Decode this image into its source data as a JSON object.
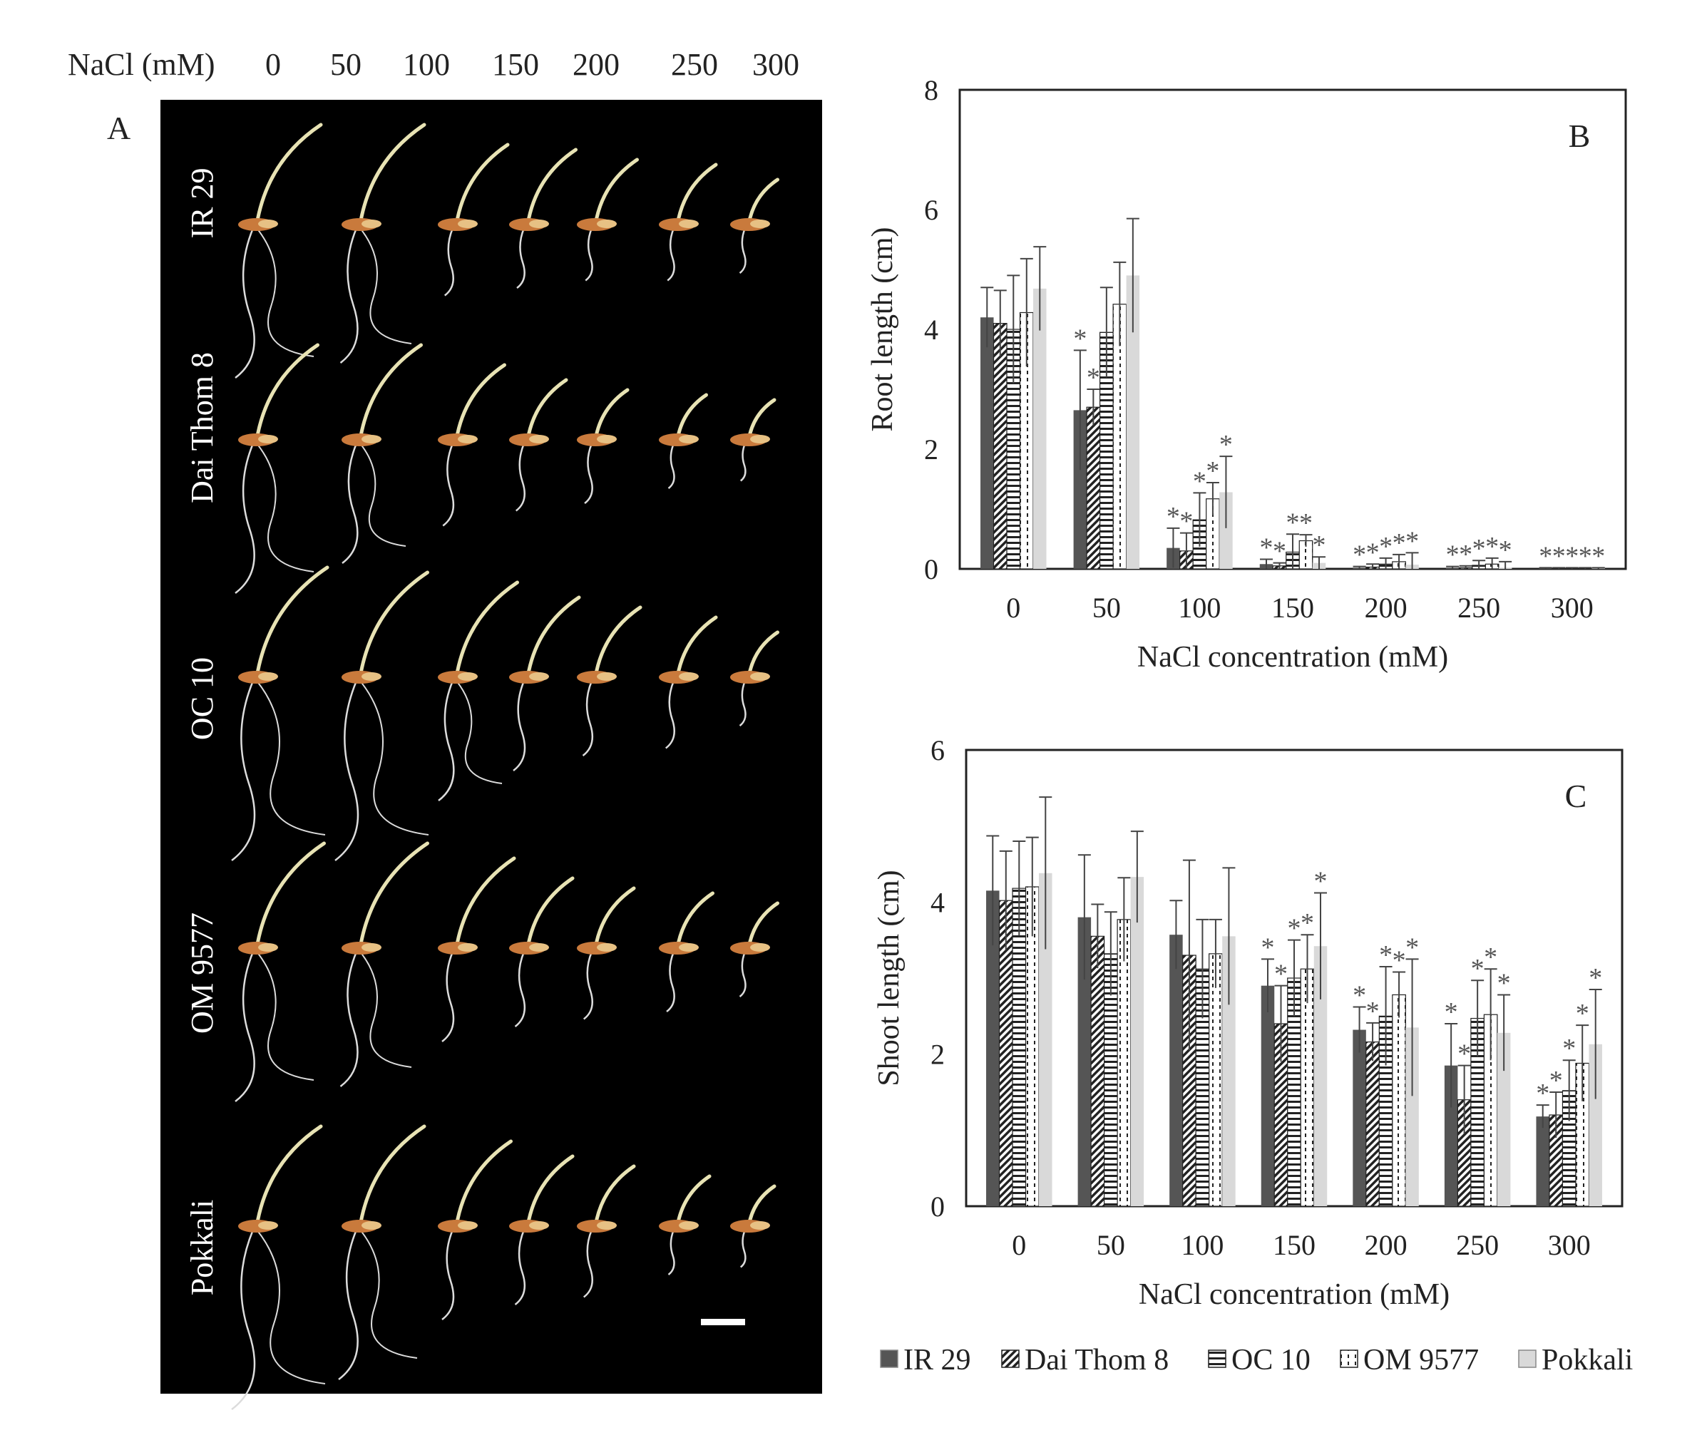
{
  "panel_a": {
    "header_label": "NaCl (mM)",
    "header_values": [
      "0",
      "50",
      "100",
      "150",
      "200",
      "250",
      "300"
    ],
    "panel_letter": "A",
    "row_labels": [
      "IR 29",
      "Dai Thom 8",
      "OC 10",
      "OM 9577",
      "Pokkali"
    ]
  },
  "legend": {
    "entries": [
      "IR 29",
      "Dai Thom 8",
      "OC 10",
      "OM 9577",
      "Pokkali"
    ],
    "position": "bottom"
  },
  "colors": {
    "photo_background": "#000000",
    "ir29": "#555555",
    "pokkali": "#d9d9d9",
    "axis": "#222222",
    "seedling_shoot": "#e8e3b4",
    "seedling_root": "#dcdcdc",
    "seed": "#c97a3c"
  },
  "chart_data": [
    {
      "type": "bar",
      "panel_letter": "B",
      "title": "",
      "xlabel": "NaCl concentration (mM)",
      "ylabel": "Root length (cm)",
      "ylim": [
        0,
        8
      ],
      "yticks": [
        "0",
        "2",
        "4",
        "6",
        "8"
      ],
      "categories": [
        "0",
        "50",
        "100",
        "150",
        "200",
        "250",
        "300"
      ],
      "grid": false,
      "series": [
        {
          "name": "IR 29",
          "values": [
            4.2,
            2.65,
            0.35,
            0.08,
            0.02,
            0.02,
            0.01
          ],
          "errors": [
            0.5,
            1.0,
            0.33,
            0.08,
            0.02,
            0.02,
            0.01
          ]
        },
        {
          "name": "Dai Thom 8",
          "values": [
            4.1,
            2.7,
            0.3,
            0.05,
            0.03,
            0.02,
            0.01
          ],
          "errors": [
            0.55,
            0.3,
            0.3,
            0.05,
            0.05,
            0.03,
            0.01
          ]
        },
        {
          "name": "OC 10",
          "values": [
            4.0,
            3.95,
            0.82,
            0.28,
            0.08,
            0.06,
            0.01
          ],
          "errors": [
            0.9,
            0.75,
            0.45,
            0.3,
            0.1,
            0.08,
            0.01
          ]
        },
        {
          "name": "OM 9577",
          "values": [
            4.28,
            4.42,
            1.17,
            0.47,
            0.12,
            0.08,
            0.01
          ],
          "errors": [
            0.9,
            0.7,
            0.27,
            0.1,
            0.12,
            0.1,
            0.01
          ]
        },
        {
          "name": "Pokkali",
          "values": [
            4.68,
            4.9,
            1.28,
            0.1,
            0.07,
            0.02,
            0.01
          ],
          "errors": [
            0.7,
            0.95,
            0.6,
            0.1,
            0.2,
            0.1,
            0.01
          ]
        }
      ],
      "significance": [
        [
          "",
          "",
          "",
          "",
          ""
        ],
        [
          "*",
          "*",
          "",
          "",
          ""
        ],
        [
          "*",
          "*",
          "*",
          "*",
          "*"
        ],
        [
          "*",
          "*",
          "*",
          "*",
          "*"
        ],
        [
          "*",
          "*",
          "*",
          "*",
          "*"
        ],
        [
          "*",
          "*",
          "*",
          "*",
          "*"
        ],
        [
          "*",
          "*",
          "*",
          "*",
          "*"
        ]
      ]
    },
    {
      "type": "bar",
      "panel_letter": "C",
      "title": "",
      "xlabel": "NaCl concentration (mM)",
      "ylabel": "Shoot length (cm)",
      "ylim": [
        0,
        6
      ],
      "yticks": [
        "0",
        "2",
        "4",
        "6"
      ],
      "categories": [
        "0",
        "50",
        "100",
        "150",
        "200",
        "250",
        "300"
      ],
      "grid": false,
      "series": [
        {
          "name": "IR 29",
          "values": [
            4.15,
            3.8,
            3.57,
            2.9,
            2.32,
            1.85,
            1.18
          ],
          "errors": [
            0.72,
            0.82,
            0.45,
            0.35,
            0.3,
            0.55,
            0.15
          ]
        },
        {
          "name": "Dai Thom 8",
          "values": [
            4.02,
            3.55,
            3.3,
            2.4,
            2.16,
            1.4,
            1.2
          ],
          "errors": [
            0.65,
            0.42,
            1.25,
            0.5,
            0.25,
            0.45,
            0.3
          ]
        },
        {
          "name": "OC 10",
          "values": [
            4.18,
            3.32,
            3.12,
            3.0,
            2.5,
            2.47,
            1.52
          ],
          "errors": [
            0.62,
            0.55,
            0.65,
            0.5,
            0.65,
            0.5,
            0.4
          ]
        },
        {
          "name": "OM 9577",
          "values": [
            4.2,
            3.77,
            3.32,
            3.12,
            2.78,
            2.52,
            1.88
          ],
          "errors": [
            0.65,
            0.55,
            0.45,
            0.45,
            0.3,
            0.6,
            0.5
          ]
        },
        {
          "name": "Pokkali",
          "values": [
            4.38,
            4.33,
            3.55,
            3.42,
            2.35,
            2.28,
            2.13
          ],
          "errors": [
            1.0,
            0.6,
            0.9,
            0.7,
            0.9,
            0.5,
            0.72
          ]
        }
      ],
      "significance": [
        [
          "",
          "",
          "",
          "",
          ""
        ],
        [
          "",
          "",
          "",
          "",
          ""
        ],
        [
          "",
          "",
          "",
          "",
          ""
        ],
        [
          "*",
          "*",
          "*",
          "*",
          "*"
        ],
        [
          "*",
          "*",
          "*",
          "*",
          "*"
        ],
        [
          "*",
          "*",
          "*",
          "*",
          "*"
        ],
        [
          "*",
          "*",
          "*",
          "*",
          "*"
        ]
      ]
    }
  ]
}
